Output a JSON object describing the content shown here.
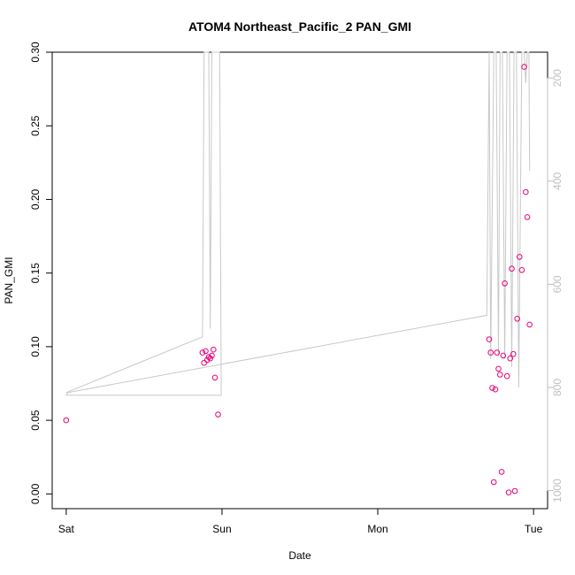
{
  "chart_data": {
    "type": "scatter",
    "title": "ATOM4 Northeast_Pacific_2 PAN_GMI",
    "xlabel": "Date",
    "ylabel": "PAN_GMI",
    "x_ticks": [
      {
        "label": "Sat",
        "value": 0
      },
      {
        "label": "Sun",
        "value": 1
      },
      {
        "label": "Mon",
        "value": 2
      },
      {
        "label": "Tue",
        "value": 3
      }
    ],
    "y_ticks": [
      "0.00",
      "0.05",
      "0.10",
      "0.15",
      "0.20",
      "0.25",
      "0.30"
    ],
    "xlim": [
      -0.09,
      3.09
    ],
    "ylim": [
      -0.01,
      0.3
    ],
    "right_axis": {
      "ticks": [
        "200",
        "400",
        "600",
        "800",
        "1000"
      ],
      "reversed": true,
      "ylim": [
        1035,
        150
      ]
    },
    "colors": {
      "points": "#e6007a",
      "line": "#c8c8c8"
    },
    "series": [
      {
        "points": [
          {
            "x": 0.0,
            "y": 0.05
          },
          {
            "x": 0.875,
            "y": 0.096
          },
          {
            "x": 0.885,
            "y": 0.089
          },
          {
            "x": 0.895,
            "y": 0.097
          },
          {
            "x": 0.905,
            "y": 0.091
          },
          {
            "x": 0.915,
            "y": 0.093
          },
          {
            "x": 0.925,
            "y": 0.092
          },
          {
            "x": 0.935,
            "y": 0.094
          },
          {
            "x": 0.945,
            "y": 0.098
          },
          {
            "x": 0.955,
            "y": 0.079
          },
          {
            "x": 0.975,
            "y": 0.054
          },
          {
            "x": 2.715,
            "y": 0.105
          },
          {
            "x": 2.725,
            "y": 0.096
          },
          {
            "x": 2.735,
            "y": 0.072
          },
          {
            "x": 2.745,
            "y": 0.008
          },
          {
            "x": 2.755,
            "y": 0.071
          },
          {
            "x": 2.765,
            "y": 0.096
          },
          {
            "x": 2.775,
            "y": 0.085
          },
          {
            "x": 2.785,
            "y": 0.081
          },
          {
            "x": 2.795,
            "y": 0.015
          },
          {
            "x": 2.805,
            "y": 0.094
          },
          {
            "x": 2.815,
            "y": 0.143
          },
          {
            "x": 2.83,
            "y": 0.08
          },
          {
            "x": 2.84,
            "y": 0.001
          },
          {
            "x": 2.85,
            "y": 0.092
          },
          {
            "x": 2.86,
            "y": 0.153
          },
          {
            "x": 2.87,
            "y": 0.095
          },
          {
            "x": 2.88,
            "y": 0.002
          },
          {
            "x": 2.895,
            "y": 0.119
          },
          {
            "x": 2.91,
            "y": 0.161
          },
          {
            "x": 2.925,
            "y": 0.152
          },
          {
            "x": 2.94,
            "y": 0.29
          },
          {
            "x": 2.95,
            "y": 0.205
          },
          {
            "x": 2.96,
            "y": 0.188
          },
          {
            "x": 2.975,
            "y": 0.115
          }
        ]
      }
    ],
    "pressure_line": [
      {
        "x": 0.0,
        "p": 810
      },
      {
        "x": 0.875,
        "p": 702
      },
      {
        "x": 0.885,
        "p": 150
      },
      {
        "x": 0.895,
        "p": 150
      },
      {
        "x": 0.905,
        "p": 150
      },
      {
        "x": 0.915,
        "p": 150
      },
      {
        "x": 0.925,
        "p": 686
      },
      {
        "x": 0.935,
        "p": 150
      },
      {
        "x": 0.945,
        "p": 150
      },
      {
        "x": 0.955,
        "p": 150
      },
      {
        "x": 0.965,
        "p": 150
      },
      {
        "x": 0.975,
        "p": 150
      },
      {
        "x": 0.985,
        "p": 150
      },
      {
        "x": 0.995,
        "p": 815
      },
      {
        "x": 0.0,
        "p": 815
      },
      {
        "x": 0.01,
        "p": 810
      },
      {
        "x": 2.7,
        "p": 660
      },
      {
        "x": 2.715,
        "p": 150
      },
      {
        "x": 2.725,
        "p": 745
      },
      {
        "x": 2.745,
        "p": 150
      },
      {
        "x": 2.76,
        "p": 150
      },
      {
        "x": 2.775,
        "p": 740
      },
      {
        "x": 2.785,
        "p": 150
      },
      {
        "x": 2.8,
        "p": 150
      },
      {
        "x": 2.815,
        "p": 745
      },
      {
        "x": 2.83,
        "p": 150
      },
      {
        "x": 2.845,
        "p": 150
      },
      {
        "x": 2.86,
        "p": 760
      },
      {
        "x": 2.875,
        "p": 150
      },
      {
        "x": 2.89,
        "p": 150
      },
      {
        "x": 2.905,
        "p": 800
      },
      {
        "x": 2.925,
        "p": 150
      },
      {
        "x": 2.94,
        "p": 150
      },
      {
        "x": 2.95,
        "p": 210
      },
      {
        "x": 2.96,
        "p": 150
      },
      {
        "x": 2.97,
        "p": 150
      },
      {
        "x": 2.975,
        "p": 380
      }
    ],
    "grid": false,
    "legend": "none"
  }
}
